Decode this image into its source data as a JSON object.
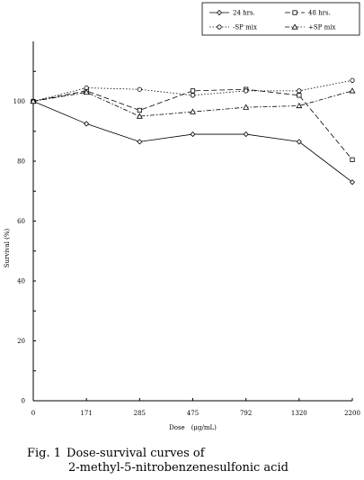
{
  "chart_data": {
    "type": "line",
    "categories": [
      "0",
      "171",
      "285",
      "475",
      "792",
      "1320",
      "2200"
    ],
    "xlabel": "Dose　(μg/mL)",
    "ylabel": "Survival (%)",
    "ylim": [
      0,
      120
    ],
    "yticks": [
      0,
      20,
      40,
      60,
      80,
      100
    ],
    "grid": false,
    "legend_position": "top-right",
    "series": [
      {
        "name": "24 hrs.",
        "marker": "diamond",
        "dash": "solid",
        "values": [
          100,
          92.5,
          86.5,
          89,
          89,
          86.5,
          73
        ]
      },
      {
        "name": "48 hrs.",
        "marker": "square",
        "dash": "longdash",
        "values": [
          100,
          103.5,
          97,
          103.5,
          104,
          102,
          80.5
        ]
      },
      {
        "name": "-SP mix",
        "marker": "circle",
        "dash": "dotted",
        "values": [
          100,
          104.5,
          104,
          102,
          103.5,
          103.5,
          107
        ]
      },
      {
        "name": "+SP mix",
        "marker": "triangle",
        "dash": "dashdot",
        "values": [
          100,
          103,
          95,
          96.5,
          98,
          98.5,
          103.5
        ]
      }
    ]
  },
  "caption": {
    "label": "Fig. 1",
    "line1": "Dose-survival curves of",
    "line2": "2-methyl-5-nitrobenzenesulfonic acid"
  }
}
